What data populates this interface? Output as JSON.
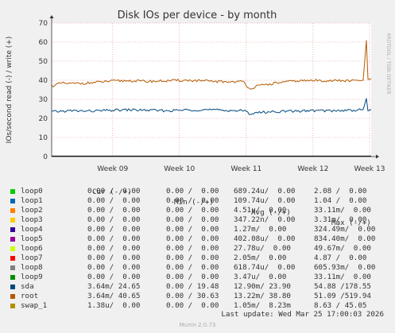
{
  "chart_data": {
    "type": "line",
    "title": "Disk IOs per device - by month",
    "ylabel": "IOs/second read (-) / write (+)",
    "ylim": [
      0,
      70
    ],
    "yticks": [
      0,
      10,
      20,
      30,
      40,
      50,
      60,
      70
    ],
    "xticks": [
      "Week 09",
      "Week 10",
      "Week 11",
      "Week 12",
      "Week 13"
    ],
    "grid": true,
    "series": [
      {
        "name": "loop0",
        "color": "#00cc00",
        "values": [
          0,
          0,
          0,
          0,
          0,
          0,
          0,
          0,
          0,
          0
        ]
      },
      {
        "name": "loop1",
        "color": "#0066b3",
        "values": [
          0,
          0,
          0,
          0,
          0,
          0,
          0,
          0,
          0,
          0
        ]
      },
      {
        "name": "loop2",
        "color": "#ff8000",
        "values": [
          0,
          0,
          0,
          0,
          0,
          0,
          0,
          0,
          0,
          0
        ]
      },
      {
        "name": "loop3",
        "color": "#ffcc00",
        "values": [
          0,
          0,
          0,
          0,
          0,
          0,
          0,
          0,
          0,
          0
        ]
      },
      {
        "name": "loop4",
        "color": "#330099",
        "values": [
          0,
          0,
          0,
          0,
          0,
          0,
          0,
          0,
          0,
          0
        ]
      },
      {
        "name": "loop5",
        "color": "#990099",
        "values": [
          0,
          0,
          0,
          0,
          0,
          0,
          0,
          0,
          0,
          0
        ]
      },
      {
        "name": "loop6",
        "color": "#ccff00",
        "values": [
          0,
          0,
          0,
          0,
          0,
          0,
          0,
          0,
          0,
          0
        ]
      },
      {
        "name": "loop7",
        "color": "#ff0000",
        "values": [
          0,
          0,
          0,
          0,
          0,
          0,
          0,
          0,
          0,
          0
        ]
      },
      {
        "name": "loop8",
        "color": "#808080",
        "values": [
          0,
          0,
          0,
          0,
          0,
          0,
          0,
          0,
          0,
          0
        ]
      },
      {
        "name": "loop9",
        "color": "#008f00",
        "values": [
          0,
          0,
          0,
          0,
          0,
          0,
          0,
          0,
          0,
          0
        ]
      },
      {
        "name": "sda",
        "color": "#00487d",
        "x": [
          0,
          0.06,
          0.12,
          0.18,
          0.24,
          0.3,
          0.36,
          0.42,
          0.48,
          0.54,
          0.6,
          0.62,
          0.64,
          0.7,
          0.76,
          0.82,
          0.88,
          0.94,
          0.975,
          0.985,
          0.99,
          1.0
        ],
        "values": [
          23.5,
          24.0,
          23.8,
          24.2,
          24.5,
          24.3,
          24.0,
          24.4,
          24.6,
          24.2,
          24.1,
          22.5,
          23.0,
          23.6,
          23.8,
          24.1,
          24.0,
          24.3,
          24.6,
          30.5,
          24.0,
          24.65
        ]
      },
      {
        "name": "root",
        "color": "#b35a00",
        "x": [
          0,
          0.03,
          0.06,
          0.12,
          0.18,
          0.24,
          0.3,
          0.36,
          0.42,
          0.48,
          0.54,
          0.6,
          0.62,
          0.64,
          0.7,
          0.76,
          0.82,
          0.88,
          0.94,
          0.975,
          0.985,
          0.99,
          1.0
        ],
        "values": [
          37.0,
          38.5,
          38.2,
          38.6,
          39.5,
          39.8,
          39.4,
          39.7,
          40.0,
          39.6,
          39.2,
          39.3,
          35.5,
          36.8,
          38.5,
          39.6,
          39.9,
          39.8,
          39.7,
          40.0,
          61.0,
          40.5,
          40.65
        ]
      },
      {
        "name": "swap_1",
        "color": "#b38f00",
        "values": [
          0,
          0,
          0,
          0,
          0,
          0,
          0,
          0,
          0,
          0
        ]
      }
    ]
  },
  "side_label": "RRDTOOL / TOBI OETIKER",
  "legend_headers": [
    "Cur (-/+)",
    "Min (-/+)",
    "Avg (-/+)",
    "Max (-/+)"
  ],
  "legend_rows": [
    {
      "name": "loop0",
      "color": "#00cc00",
      "cur": "0.00 /  0.00",
      "min": "0.00 /  0.00",
      "avg": "689.24u/  0.00",
      "max": "2.08 /  0.00"
    },
    {
      "name": "loop1",
      "color": "#0066b3",
      "cur": "0.00 /  0.00",
      "min": "0.00 /  0.00",
      "avg": "109.74u/  0.00",
      "max": "1.04 /  0.00"
    },
    {
      "name": "loop2",
      "color": "#ff8000",
      "cur": "0.00 /  0.00",
      "min": "0.00 /  0.00",
      "avg": "4.51u/  0.00",
      "max": "33.11m/  0.00"
    },
    {
      "name": "loop3",
      "color": "#ffcc00",
      "cur": "0.00 /  0.00",
      "min": "0.00 /  0.00",
      "avg": "347.22n/  0.00",
      "max": "3.31m/  0.00"
    },
    {
      "name": "loop4",
      "color": "#330099",
      "cur": "0.00 /  0.00",
      "min": "0.00 /  0.00",
      "avg": "1.27m/  0.00",
      "max": "324.49m/  0.00"
    },
    {
      "name": "loop5",
      "color": "#990099",
      "cur": "0.00 /  0.00",
      "min": "0.00 /  0.00",
      "avg": "402.08u/  0.00",
      "max": "834.40m/  0.00"
    },
    {
      "name": "loop6",
      "color": "#ccff00",
      "cur": "0.00 /  0.00",
      "min": "0.00 /  0.00",
      "avg": "27.78u/  0.00",
      "max": "49.67m/  0.00"
    },
    {
      "name": "loop7",
      "color": "#ff0000",
      "cur": "0.00 /  0.00",
      "min": "0.00 /  0.00",
      "avg": "2.05m/  0.00",
      "max": "4.87 /  0.00"
    },
    {
      "name": "loop8",
      "color": "#808080",
      "cur": "0.00 /  0.00",
      "min": "0.00 /  0.00",
      "avg": "618.74u/  0.00",
      "max": "605.93m/  0.00"
    },
    {
      "name": "loop9",
      "color": "#008f00",
      "cur": "0.00 /  0.00",
      "min": "0.00 /  0.00",
      "avg": "3.47u/  0.00",
      "max": "33.11m/  0.00"
    },
    {
      "name": "sda",
      "color": "#00487d",
      "cur": "3.64m/ 24.65",
      "min": "0.00 / 19.48",
      "avg": "12.90m/ 23.90",
      "max": "54.88 /178.55"
    },
    {
      "name": "root",
      "color": "#b35a00",
      "cur": "3.64m/ 40.65",
      "min": "0.00 / 30.63",
      "avg": "13.22m/ 38.80",
      "max": "51.09 /519.94"
    },
    {
      "name": "swap_1",
      "color": "#b38f00",
      "cur": "1.38u/  0.00",
      "min": "0.00 /  0.00",
      "avg": "1.05m/  8.23m",
      "max": "8.63 / 45.05"
    }
  ],
  "last_update": "Last update: Wed Mar 25 17:00:03 2026",
  "generator": "Munin 2.0.73"
}
